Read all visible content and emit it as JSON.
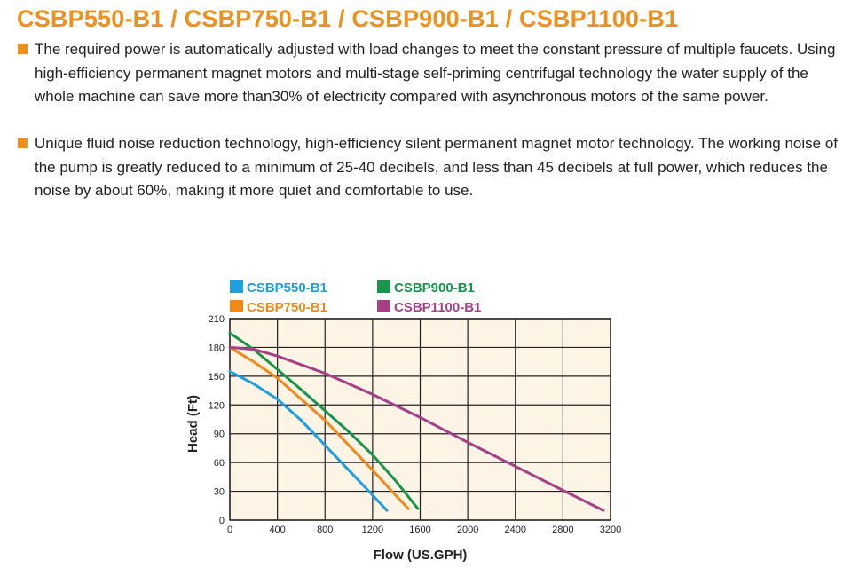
{
  "title": "CSBP550-B1 / CSBP750-B1 / CSBP900-B1 / CSBP1100-B1",
  "paragraphs": [
    "The required power is automatically adjusted with load changes to meet the constant pressure of multiple faucets. Using high-efficiency permanent magnet motors and multi-stage self-priming centrifugal technology the water supply of the whole machine can save more than30% of electricity compared with asynchronous motors of the same power.",
    "Unique fluid noise reduction technology, high-efficiency silent permanent magnet motor technology. The working noise of the pump is greatly reduced to a minimum of 25-40 decibels, and less than 45 decibels at full power, which reduces the noise by about 60%, making it more quiet and comfortable to use."
  ],
  "colors": {
    "accent": "#f0901c",
    "plot_bg": "#fdf4e6"
  },
  "chart_data": {
    "type": "line",
    "xlabel": "Flow (US.GPH)",
    "ylabel": "Head (Ft)",
    "xlim": [
      0,
      3200
    ],
    "ylim": [
      0,
      210
    ],
    "xticks": [
      0,
      400,
      800,
      1200,
      1600,
      2000,
      2400,
      2800,
      3200
    ],
    "yticks": [
      0,
      30,
      60,
      90,
      120,
      150,
      180,
      210
    ],
    "grid": true,
    "legend": "top",
    "series": [
      {
        "name": "CSBP550-B1",
        "color": "#1e9fe0",
        "points": [
          [
            0,
            155
          ],
          [
            200,
            142
          ],
          [
            400,
            126
          ],
          [
            600,
            104
          ],
          [
            800,
            78
          ],
          [
            1000,
            52
          ],
          [
            1200,
            26
          ],
          [
            1320,
            10
          ]
        ]
      },
      {
        "name": "CSBP750-B1",
        "color": "#f0881a",
        "points": [
          [
            0,
            180
          ],
          [
            200,
            165
          ],
          [
            400,
            148
          ],
          [
            600,
            126
          ],
          [
            800,
            104
          ],
          [
            1000,
            78
          ],
          [
            1200,
            52
          ],
          [
            1400,
            25
          ],
          [
            1500,
            12
          ]
        ]
      },
      {
        "name": "CSBP900-B1",
        "color": "#17954a",
        "points": [
          [
            0,
            195
          ],
          [
            200,
            178
          ],
          [
            400,
            157
          ],
          [
            600,
            136
          ],
          [
            800,
            114
          ],
          [
            1000,
            92
          ],
          [
            1200,
            68
          ],
          [
            1400,
            40
          ],
          [
            1580,
            12
          ]
        ]
      },
      {
        "name": "CSBP1100-B1",
        "color": "#a63f86",
        "points": [
          [
            0,
            180
          ],
          [
            200,
            178
          ],
          [
            400,
            171
          ],
          [
            800,
            153
          ],
          [
            1200,
            131
          ],
          [
            1600,
            107
          ],
          [
            2000,
            81
          ],
          [
            2400,
            56
          ],
          [
            2800,
            31
          ],
          [
            3140,
            10
          ]
        ]
      }
    ]
  }
}
